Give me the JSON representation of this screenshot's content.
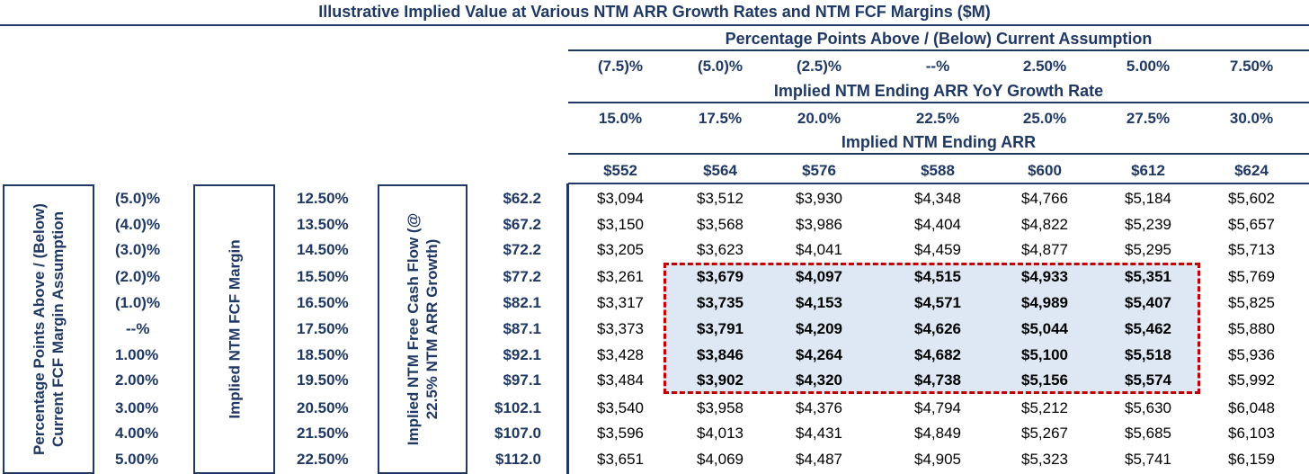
{
  "title": "Illustrative Implied Value at Various NTM ARR Growth Rates and NTM FCF Margins ($M)",
  "top_section": {
    "pp_label": "Percentage Points Above / (Below) Current Assumption",
    "pp_values": [
      "(7.5)%",
      "(5.0)%",
      "(2.5)%",
      "--%",
      "2.50%",
      "5.00%",
      "7.50%"
    ],
    "growth_label": "Implied NTM Ending ARR YoY Growth Rate",
    "growth_values": [
      "15.0%",
      "17.5%",
      "20.0%",
      "22.5%",
      "25.0%",
      "27.5%",
      "30.0%"
    ],
    "arr_label": "Implied NTM Ending ARR",
    "arr_values": [
      "$552",
      "$564",
      "$576",
      "$588",
      "$600",
      "$612",
      "$624"
    ]
  },
  "left_labels": {
    "pp_fcf": "Percentage Points Above / (Below) Current FCF Margin Assumption",
    "margin": "Implied NTM FCF Margin",
    "fcf": "Implied NTM Free Cash Flow (@ 22.5% NTM ARR Growth)"
  },
  "rows": [
    {
      "pp": "(5.0)%",
      "margin": "12.50%",
      "fcf": "$62.2",
      "vals": [
        "$3,094",
        "$3,512",
        "$3,930",
        "$4,348",
        "$4,766",
        "$5,184",
        "$5,602"
      ]
    },
    {
      "pp": "(4.0)%",
      "margin": "13.50%",
      "fcf": "$67.2",
      "vals": [
        "$3,150",
        "$3,568",
        "$3,986",
        "$4,404",
        "$4,822",
        "$5,239",
        "$5,657"
      ]
    },
    {
      "pp": "(3.0)%",
      "margin": "14.50%",
      "fcf": "$72.2",
      "vals": [
        "$3,205",
        "$3,623",
        "$4,041",
        "$4,459",
        "$4,877",
        "$5,295",
        "$5,713"
      ]
    },
    {
      "pp": "(2.0)%",
      "margin": "15.50%",
      "fcf": "$77.2",
      "vals": [
        "$3,261",
        "$3,679",
        "$4,097",
        "$4,515",
        "$4,933",
        "$5,351",
        "$5,769"
      ]
    },
    {
      "pp": "(1.0)%",
      "margin": "16.50%",
      "fcf": "$82.1",
      "vals": [
        "$3,317",
        "$3,735",
        "$4,153",
        "$4,571",
        "$4,989",
        "$5,407",
        "$5,825"
      ]
    },
    {
      "pp": "--%",
      "margin": "17.50%",
      "fcf": "$87.1",
      "vals": [
        "$3,373",
        "$3,791",
        "$4,209",
        "$4,626",
        "$5,044",
        "$5,462",
        "$5,880"
      ]
    },
    {
      "pp": "1.00%",
      "margin": "18.50%",
      "fcf": "$92.1",
      "vals": [
        "$3,428",
        "$3,846",
        "$4,264",
        "$4,682",
        "$5,100",
        "$5,518",
        "$5,936"
      ]
    },
    {
      "pp": "2.00%",
      "margin": "19.50%",
      "fcf": "$97.1",
      "vals": [
        "$3,484",
        "$3,902",
        "$4,320",
        "$4,738",
        "$5,156",
        "$5,574",
        "$5,992"
      ]
    },
    {
      "pp": "3.00%",
      "margin": "20.50%",
      "fcf": "$102.1",
      "vals": [
        "$3,540",
        "$3,958",
        "$4,376",
        "$4,794",
        "$5,212",
        "$5,630",
        "$6,048"
      ]
    },
    {
      "pp": "4.00%",
      "margin": "21.50%",
      "fcf": "$107.0",
      "vals": [
        "$3,596",
        "$4,013",
        "$4,431",
        "$4,849",
        "$5,267",
        "$5,685",
        "$6,103"
      ]
    },
    {
      "pp": "5.00%",
      "margin": "22.50%",
      "fcf": "$112.0",
      "vals": [
        "$3,651",
        "$4,069",
        "$4,487",
        "$4,905",
        "$5,323",
        "$5,741",
        "$6,159"
      ]
    }
  ],
  "colors": {
    "navy": "#1f3864",
    "highlight_fill": "#dde8f4",
    "highlight_border": "#c00000"
  }
}
